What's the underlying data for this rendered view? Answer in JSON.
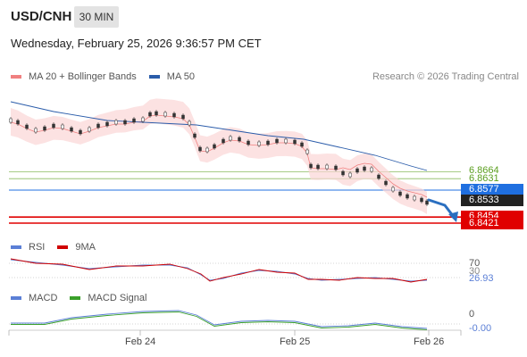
{
  "header": {
    "symbol": "USD/CNH",
    "interval": "30 MIN",
    "datetime": "Wednesday, February 25, 2026 9:36:57 PM CET"
  },
  "legend": {
    "ma20": "MA 20 + Bollinger Bands",
    "ma50": "MA 50",
    "credit": "Research © 2026 Trading Central",
    "ma20_color": "#f08080",
    "ma50_color": "#2a5caa"
  },
  "levels": {
    "resistance_1": "6.8664",
    "resistance_2": "6.8631",
    "pivot": "6.8577",
    "last": "6.8533",
    "support_1": "6.8454",
    "support_2": "6.8421",
    "resistance_color": "#5a9e1e",
    "pivot_color": "#1f6fe0",
    "support_color": "#e00000",
    "last_color": "#222222"
  },
  "rsi": {
    "label": "RSI",
    "ma_label": "9MA",
    "level_70": "70",
    "level_30": "30",
    "value": "26.93",
    "rsi_color": "#5b7fd6",
    "ma_color": "#d00000"
  },
  "macd": {
    "label": "MACD",
    "signal_label": "MACD Signal",
    "zero": "0",
    "value": "-0.00",
    "macd_color": "#5b7fd6",
    "signal_color": "#3aa02a"
  },
  "xaxis": {
    "ticks": [
      "Feb 24",
      "Feb 25",
      "Feb 26"
    ]
  },
  "chart_data": {
    "type": "line",
    "x": [
      "Feb 24",
      "Feb 25",
      "Feb 26"
    ],
    "price_range": [
      6.84,
      6.88
    ],
    "series": [
      {
        "name": "MA 20 + Bollinger Bands"
      },
      {
        "name": "MA 50"
      }
    ],
    "levels": [
      6.8664,
      6.8631,
      6.8577,
      6.8533,
      6.8454,
      6.8421
    ],
    "last_price": 6.8533,
    "rsi_last": 26.93,
    "macd_last": -0.0
  }
}
